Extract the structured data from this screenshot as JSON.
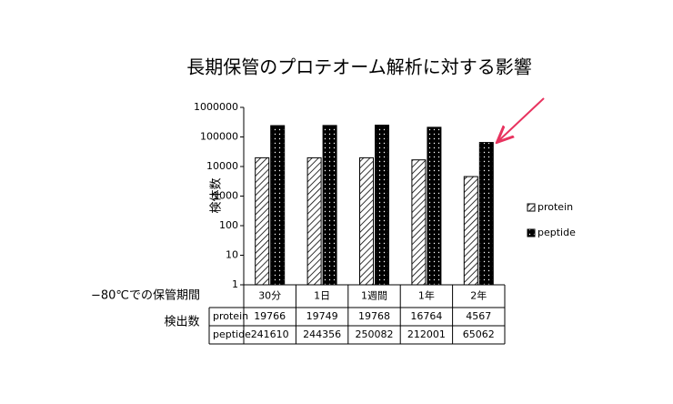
{
  "chart_data": {
    "type": "bar",
    "title": "長期保管のプロテオーム解析に対する影響",
    "ylabel": "検体数",
    "log_scale": true,
    "categories": [
      "30分",
      "1日",
      "1週間",
      "1年",
      "2年"
    ],
    "series": [
      {
        "name": "protein",
        "color": "#000000",
        "pattern": "hatch",
        "values": [
          19766,
          19749,
          19768,
          16764,
          4567
        ]
      },
      {
        "name": "peptide",
        "color": "#000000",
        "pattern": "dots",
        "values": [
          241610,
          244356,
          250082,
          212001,
          65062
        ]
      }
    ],
    "ylim": [
      1,
      1000000
    ],
    "yticks": [
      1,
      10,
      100,
      1000,
      10000,
      100000,
      1000000
    ],
    "table_header_label": "−80℃での保管期間",
    "table_side_label": "検出数",
    "legend": "right"
  }
}
